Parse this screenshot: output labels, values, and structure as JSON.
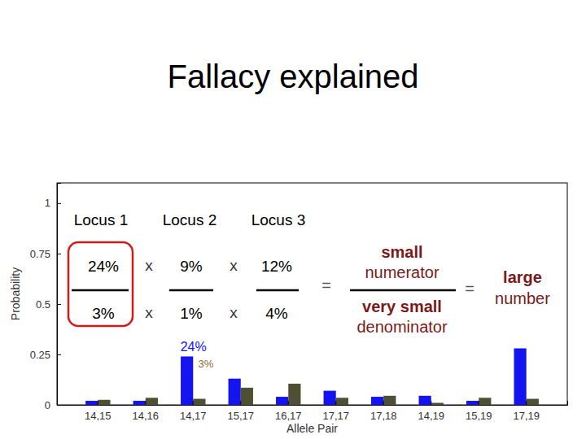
{
  "chart_data": {
    "type": "bar",
    "title": "Fallacy explained",
    "x_label": "Allele Pair",
    "y_label": "Probability",
    "categories": [
      "14,15",
      "14,16",
      "14,17",
      "15,17",
      "16,17",
      "17,17",
      "17,18",
      "14,19",
      "15,19",
      "17,19"
    ],
    "series": [
      {
        "color": "#1414f0",
        "values": [
          0.02,
          0.02,
          0.24,
          0.13,
          0.04,
          0.07,
          0.04,
          0.045,
          0.02,
          0.28
        ]
      },
      {
        "color": "#4f4f33",
        "values": [
          0.025,
          0.035,
          0.03,
          0.085,
          0.105,
          0.035,
          0.045,
          0.01,
          0.035,
          0.03
        ]
      }
    ],
    "ylim": [
      0,
      1.1
    ],
    "yticks": [
      0,
      0.25,
      0.5,
      0.75,
      1
    ],
    "grid": false,
    "annotations": {
      "equation": {
        "loci": [
          {
            "label": "Locus 1",
            "numerator": "24%",
            "denominator": "3%"
          },
          {
            "label": "Locus 2",
            "numerator": "9%",
            "denominator": "1%"
          },
          {
            "label": "Locus 3",
            "numerator": "12%",
            "denominator": "4%"
          }
        ],
        "operator": "x",
        "equals": "=",
        "result_numerator": [
          "small",
          "numerator"
        ],
        "result_denominator": [
          "very small",
          "denominator"
        ],
        "result": [
          "large",
          "number"
        ]
      },
      "bar_notes": [
        {
          "category": "14,17",
          "text": "24%"
        },
        {
          "category": "14,17",
          "text": "3%"
        }
      ]
    }
  }
}
